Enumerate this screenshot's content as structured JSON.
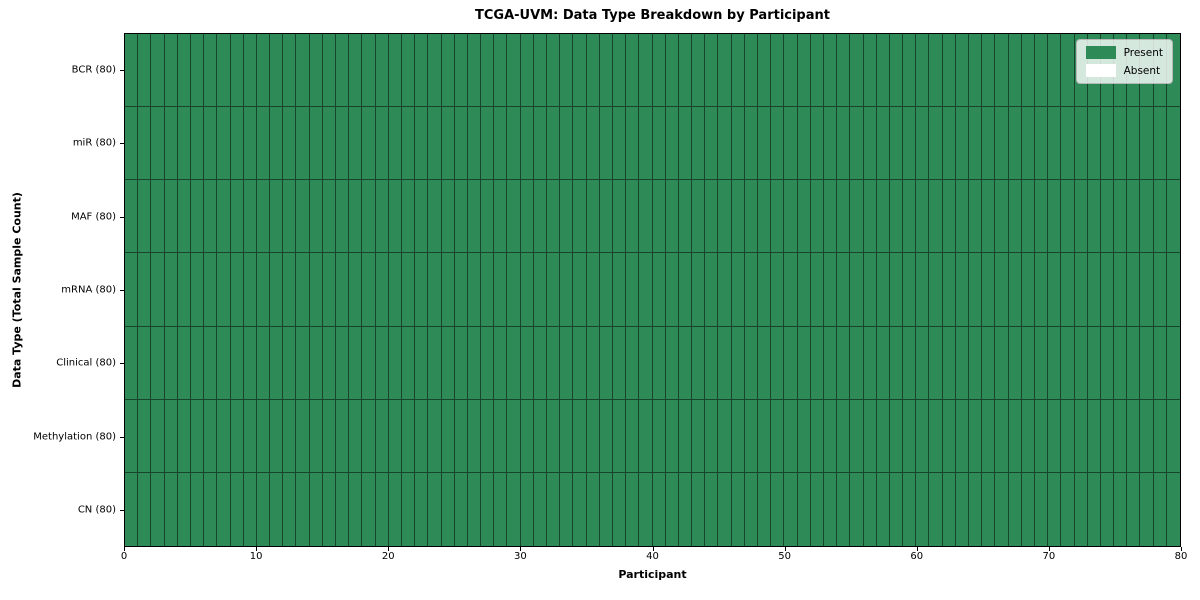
{
  "chart": {
    "title": "TCGA-UVM: Data Type Breakdown by Participant",
    "xlabel": "Participant",
    "ylabel": "Data Type (Total Sample Count)"
  },
  "chart_data": {
    "type": "heatmap",
    "title": "TCGA-UVM: Data Type Breakdown by Participant",
    "xlabel": "Participant",
    "ylabel": "Data Type (Total Sample Count)",
    "n_participants": 80,
    "x_range": [
      0,
      80
    ],
    "x_ticks": [
      0,
      10,
      20,
      30,
      40,
      50,
      60,
      70,
      80
    ],
    "rows": [
      {
        "label": "BCR (80)",
        "data_type": "BCR",
        "total_samples": 80,
        "present_count": 80
      },
      {
        "label": "miR (80)",
        "data_type": "miR",
        "total_samples": 80,
        "present_count": 80
      },
      {
        "label": "MAF (80)",
        "data_type": "MAF",
        "total_samples": 80,
        "present_count": 80
      },
      {
        "label": "mRNA (80)",
        "data_type": "mRNA",
        "total_samples": 80,
        "present_count": 80
      },
      {
        "label": "Clinical (80)",
        "data_type": "Clinical",
        "total_samples": 80,
        "present_count": 80
      },
      {
        "label": "Methylation (80)",
        "data_type": "Methylation",
        "total_samples": 80,
        "present_count": 80
      },
      {
        "label": "CN (80)",
        "data_type": "CN",
        "total_samples": 80,
        "present_count": 80
      }
    ],
    "legend": [
      {
        "label": "Present",
        "color": "#2e8b57"
      },
      {
        "label": "Absent",
        "color": "#ffffff"
      }
    ],
    "legend_position": "upper right",
    "colors": {
      "present": "#2e8b57",
      "absent": "#ffffff",
      "cell_edge": "rgba(0,0,0,0.5)",
      "spine": "#000000"
    },
    "grid": "cell-borders"
  }
}
